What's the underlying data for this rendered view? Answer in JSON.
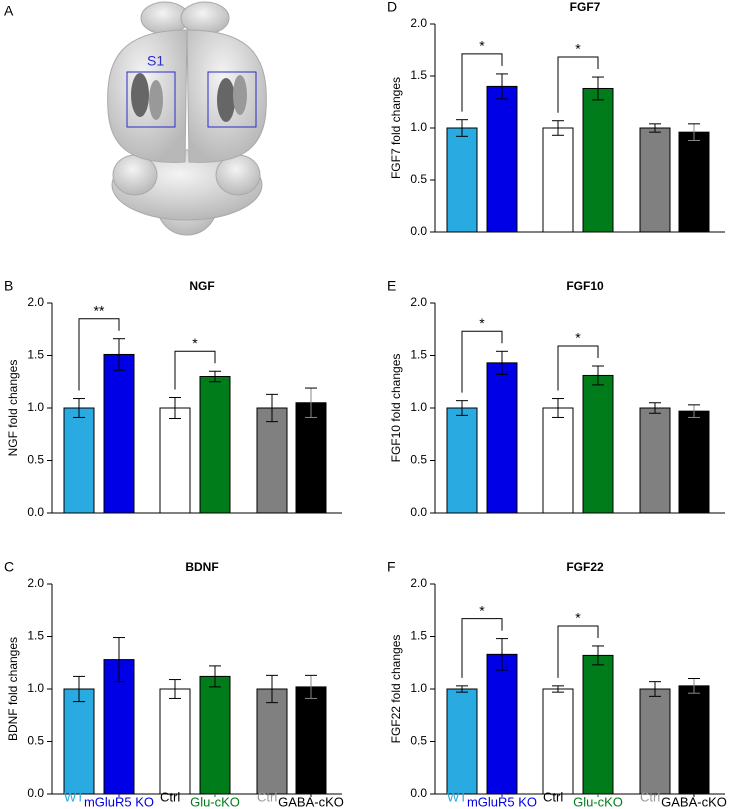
{
  "brain_panel": {
    "panel": "A",
    "region_label": "S1"
  },
  "chart_data": [
    {
      "type": "bar",
      "panel": "B",
      "title": "NGF",
      "ylabel": "NGF fold changes",
      "categories": [
        null,
        null,
        null,
        null,
        null,
        null
      ],
      "colors": [
        "#29abe2",
        "#0000e6",
        "#ffffff",
        "#007d1a",
        "#808080",
        "#000000"
      ],
      "values": [
        1.0,
        1.51,
        1.0,
        1.3,
        1.0,
        1.05
      ],
      "errors": [
        0.09,
        0.15,
        0.1,
        0.05,
        0.13,
        0.14
      ],
      "significance": [
        "**",
        "*",
        null
      ],
      "ylim": [
        0,
        2
      ],
      "yticks": [
        {
          "value": 0,
          "label": "0.0"
        },
        {
          "value": 0.5,
          "label": "0.5"
        },
        {
          "value": 1,
          "label": "1.0"
        },
        {
          "value": 1.5,
          "label": "1.5"
        },
        {
          "value": 2,
          "label": "2.0"
        }
      ]
    },
    {
      "type": "bar",
      "panel": "C",
      "title": "BDNF",
      "ylabel": "BDNF fold changes",
      "categories": [
        "WT",
        "mGluR5 KO",
        "Ctrl",
        "Glu-cKO",
        "Ctrl",
        "GABA-cKO"
      ],
      "label_colors": [
        "#29abe2",
        "#0000e6",
        "#000000",
        "#007d1a",
        "#999999",
        "#000000"
      ],
      "colors": [
        "#29abe2",
        "#0000e6",
        "#ffffff",
        "#007d1a",
        "#808080",
        "#000000"
      ],
      "values": [
        1.0,
        1.28,
        1.0,
        1.12,
        1.0,
        1.02
      ],
      "errors": [
        0.12,
        0.21,
        0.09,
        0.1,
        0.13,
        0.11
      ],
      "significance": [
        null,
        null,
        null
      ],
      "ylim": [
        0,
        2
      ],
      "yticks": [
        {
          "value": 0,
          "label": "0.0"
        },
        {
          "value": 0.5,
          "label": "0.5"
        },
        {
          "value": 1,
          "label": "1.0"
        },
        {
          "value": 1.5,
          "label": "1.5"
        },
        {
          "value": 2,
          "label": "2.0"
        }
      ]
    },
    {
      "type": "bar",
      "panel": "D",
      "title": "FGF7",
      "ylabel": "FGF7 fold changes",
      "categories": [
        null,
        null,
        null,
        null,
        null,
        null
      ],
      "colors": [
        "#29abe2",
        "#0000e6",
        "#ffffff",
        "#007d1a",
        "#808080",
        "#000000"
      ],
      "values": [
        1.0,
        1.4,
        1.0,
        1.38,
        1.0,
        0.96
      ],
      "errors": [
        0.08,
        0.12,
        0.07,
        0.11,
        0.04,
        0.08
      ],
      "significance": [
        "*",
        "*",
        null
      ],
      "ylim": [
        0,
        2
      ],
      "yticks": [
        {
          "value": 0,
          "label": "0.0"
        },
        {
          "value": 0.5,
          "label": "0.5"
        },
        {
          "value": 1,
          "label": "1.0"
        },
        {
          "value": 1.5,
          "label": "1.5"
        },
        {
          "value": 2,
          "label": "2.0"
        }
      ]
    },
    {
      "type": "bar",
      "panel": "E",
      "title": "FGF10",
      "ylabel": "FGF10 fold changes",
      "categories": [
        null,
        null,
        null,
        null,
        null,
        null
      ],
      "colors": [
        "#29abe2",
        "#0000e6",
        "#ffffff",
        "#007d1a",
        "#808080",
        "#000000"
      ],
      "values": [
        1.0,
        1.43,
        1.0,
        1.31,
        1.0,
        0.97
      ],
      "errors": [
        0.07,
        0.11,
        0.09,
        0.09,
        0.05,
        0.06
      ],
      "significance": [
        "*",
        "*",
        null
      ],
      "ylim": [
        0,
        2
      ],
      "yticks": [
        {
          "value": 0,
          "label": "0.0"
        },
        {
          "value": 0.5,
          "label": "0.5"
        },
        {
          "value": 1,
          "label": "1.0"
        },
        {
          "value": 1.5,
          "label": "1.5"
        },
        {
          "value": 2,
          "label": "2.0"
        }
      ]
    },
    {
      "type": "bar",
      "panel": "F",
      "title": "FGF22",
      "ylabel": "FGF22 fold changes",
      "categories": [
        "WT",
        "mGluR5 KO",
        "Ctrl",
        "Glu-cKO",
        "Ctrl",
        "GABA-cKO"
      ],
      "label_colors": [
        "#29abe2",
        "#0000e6",
        "#000000",
        "#007d1a",
        "#999999",
        "#000000"
      ],
      "colors": [
        "#29abe2",
        "#0000e6",
        "#ffffff",
        "#007d1a",
        "#808080",
        "#000000"
      ],
      "values": [
        1.0,
        1.33,
        1.0,
        1.32,
        1.0,
        1.03
      ],
      "errors": [
        0.03,
        0.15,
        0.03,
        0.09,
        0.07,
        0.07
      ],
      "significance": [
        "*",
        "*",
        null
      ],
      "ylim": [
        0,
        2
      ],
      "yticks": [
        {
          "value": 0,
          "label": "0.0"
        },
        {
          "value": 0.5,
          "label": "0.5"
        },
        {
          "value": 1,
          "label": "1.0"
        },
        {
          "value": 1.5,
          "label": "1.5"
        },
        {
          "value": 2,
          "label": "2.0"
        }
      ]
    }
  ]
}
